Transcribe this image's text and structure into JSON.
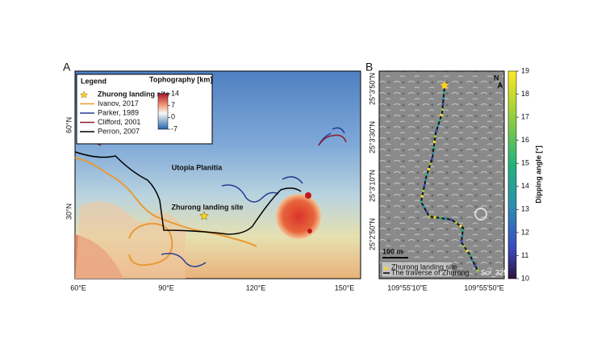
{
  "panel_a": {
    "label": "A",
    "legend_title": "Legend",
    "legend": [
      {
        "name": "Zhurong landing site",
        "color": "#ffd21f"
      },
      {
        "name": "Ivanov, 2017",
        "color": "#e89a35"
      },
      {
        "name": "Parker, 1989",
        "color": "#2a3c96"
      },
      {
        "name": "Clifford, 2001",
        "color": "#8e1c2c"
      },
      {
        "name": "Perron, 2007",
        "color": "#000000"
      }
    ],
    "colorbar": {
      "title": "Tophography [km]",
      "range": [
        -7,
        14
      ],
      "ticks": [
        14,
        7,
        0,
        -7
      ]
    },
    "x_labels": [
      "60°E",
      "90°E",
      "120°E",
      "150°E"
    ],
    "y_labels": [
      "60°N",
      "30°N"
    ],
    "annotations": [
      "Utopia Planitia",
      "Zhurong landing site"
    ]
  },
  "panel_b": {
    "label": "B",
    "legend": [
      "Zhurong landing site",
      "The traverse of Zhurong"
    ],
    "colorbar": {
      "title": "Dipping angle [°]",
      "range": [
        10,
        19
      ],
      "ticks": [
        10,
        11,
        12,
        13,
        14,
        15,
        16,
        17,
        18,
        19
      ]
    },
    "x_labels": [
      "109°55'10\"E",
      "109°55'50\"E"
    ],
    "y_labels": [
      "25°3'50\"N",
      "25°3'30\"N",
      "25°3'10\"N",
      "25°2'50\"N"
    ],
    "scale_bar": "100 m",
    "sol": "Sol_325",
    "north": "N"
  }
}
